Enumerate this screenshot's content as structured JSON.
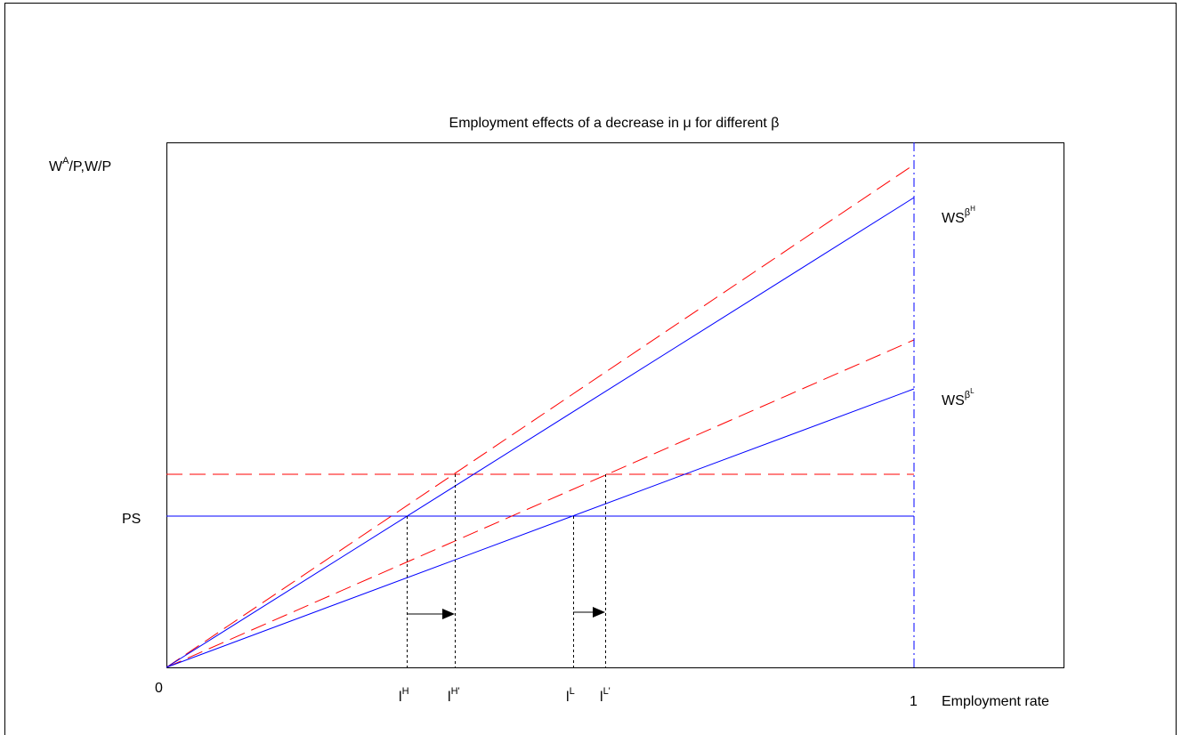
{
  "title": "Employment effects of a decrease in μ for different β",
  "y_label": {
    "base": "W",
    "sup": "A",
    "rest": "/P,W/P"
  },
  "ws_high": {
    "base": "WS",
    "sup": "β",
    "supsup": "H"
  },
  "ws_low": {
    "base": "WS",
    "sup": "β",
    "supsup": "L"
  },
  "ps_label": "PS",
  "x_origin": "0",
  "x_one": "1",
  "x_label": "Employment rate",
  "l_high": {
    "base": "l",
    "sup": "H"
  },
  "l_high_new": {
    "base": "l",
    "sup": "H'"
  },
  "l_low": {
    "base": "l",
    "sup": "L"
  },
  "l_low_new": {
    "base": "l",
    "sup": "L'"
  }
}
